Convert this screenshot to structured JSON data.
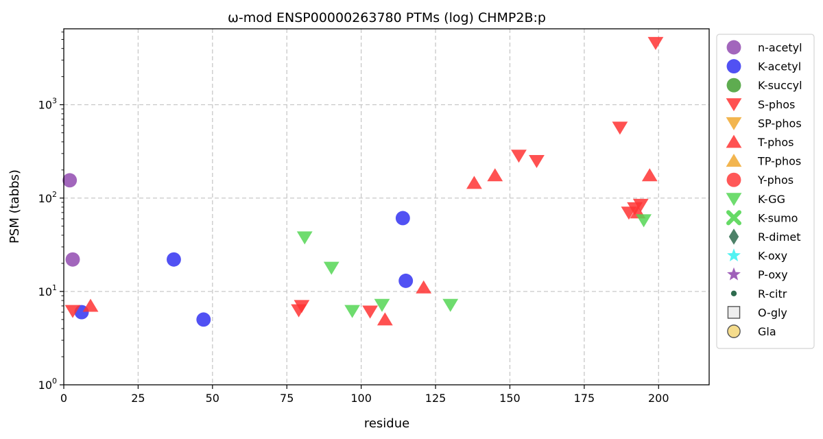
{
  "chart_data": {
    "type": "scatter",
    "title": "ω-mod ENSP00000263780 PTMs (log) CHMP2B:p",
    "xlabel": "residue",
    "ylabel": "PSM (tabbs)",
    "xlim": [
      0,
      217
    ],
    "ylim": [
      1,
      6500
    ],
    "yscale": "log",
    "grid": true,
    "legend_position": "outside-right",
    "x_ticks": [
      {
        "value": 0,
        "label": "0"
      },
      {
        "value": 25,
        "label": "25"
      },
      {
        "value": 50,
        "label": "50"
      },
      {
        "value": 75,
        "label": "75"
      },
      {
        "value": 100,
        "label": "100"
      },
      {
        "value": 125,
        "label": "125"
      },
      {
        "value": 150,
        "label": "150"
      },
      {
        "value": 175,
        "label": "175"
      },
      {
        "value": 200,
        "label": "200"
      }
    ],
    "y_ticks": [
      {
        "value": 1,
        "base": "10",
        "exp": "0"
      },
      {
        "value": 10,
        "base": "10",
        "exp": "1"
      },
      {
        "value": 100,
        "base": "10",
        "exp": "2"
      },
      {
        "value": 1000,
        "base": "10",
        "exp": "3"
      }
    ],
    "series": [
      {
        "name": "n-acetyl",
        "marker": "circle",
        "color": "#8e44ad",
        "points": [
          [
            2,
            155
          ],
          [
            3,
            22
          ]
        ]
      },
      {
        "name": "K-acetyl",
        "marker": "circle",
        "color": "#2b2bf0",
        "points": [
          [
            6,
            6
          ],
          [
            37,
            22
          ],
          [
            47,
            5
          ],
          [
            114,
            61
          ],
          [
            115,
            13
          ]
        ]
      },
      {
        "name": "K-succyl",
        "marker": "circle",
        "color": "#3a9a2a",
        "points": []
      },
      {
        "name": "S-phos",
        "marker": "triangle-down",
        "color": "#ff3333",
        "points": [
          [
            3,
            6.2
          ],
          [
            79,
            6.3
          ],
          [
            80,
            7
          ],
          [
            103,
            6.1
          ],
          [
            153,
            285
          ],
          [
            159,
            250
          ],
          [
            187,
            570
          ],
          [
            190,
            70
          ],
          [
            192,
            78
          ],
          [
            194,
            85
          ],
          [
            199,
            4600
          ]
        ]
      },
      {
        "name": "SP-phos",
        "marker": "triangle-down",
        "color": "#f0a830",
        "points": []
      },
      {
        "name": "T-phos",
        "marker": "triangle-up",
        "color": "#ff3333",
        "points": [
          [
            9,
            7
          ],
          [
            108,
            5
          ],
          [
            121,
            11
          ],
          [
            138,
            145
          ],
          [
            145,
            175
          ],
          [
            193,
            70
          ],
          [
            197,
            175
          ]
        ]
      },
      {
        "name": "TP-phos",
        "marker": "triangle-up",
        "color": "#f0a830",
        "points": []
      },
      {
        "name": "Y-phos",
        "marker": "circle",
        "color": "#ff3333",
        "points": []
      },
      {
        "name": "K-GG",
        "marker": "triangle-down",
        "color": "#55d655",
        "points": [
          [
            81,
            38
          ],
          [
            90,
            18
          ],
          [
            97,
            6.2
          ],
          [
            107,
            7.2
          ],
          [
            130,
            7.2
          ],
          [
            195,
            58
          ]
        ]
      },
      {
        "name": "K-sumo",
        "marker": "x",
        "color": "#55d655",
        "points": []
      },
      {
        "name": "R-dimet",
        "marker": "diamond",
        "color": "#2e6b4e",
        "points": []
      },
      {
        "name": "K-oxy",
        "marker": "star",
        "color": "#33f0f0",
        "points": []
      },
      {
        "name": "P-oxy",
        "marker": "star",
        "color": "#8e44ad",
        "points": []
      },
      {
        "name": "R-citr",
        "marker": "small-dot",
        "color": "#2e6b4e",
        "points": []
      },
      {
        "name": "O-gly",
        "marker": "square-open",
        "color": "#555555",
        "points": []
      },
      {
        "name": "Gla",
        "marker": "circle-open",
        "color": "#f5dc8c",
        "points": []
      }
    ]
  }
}
